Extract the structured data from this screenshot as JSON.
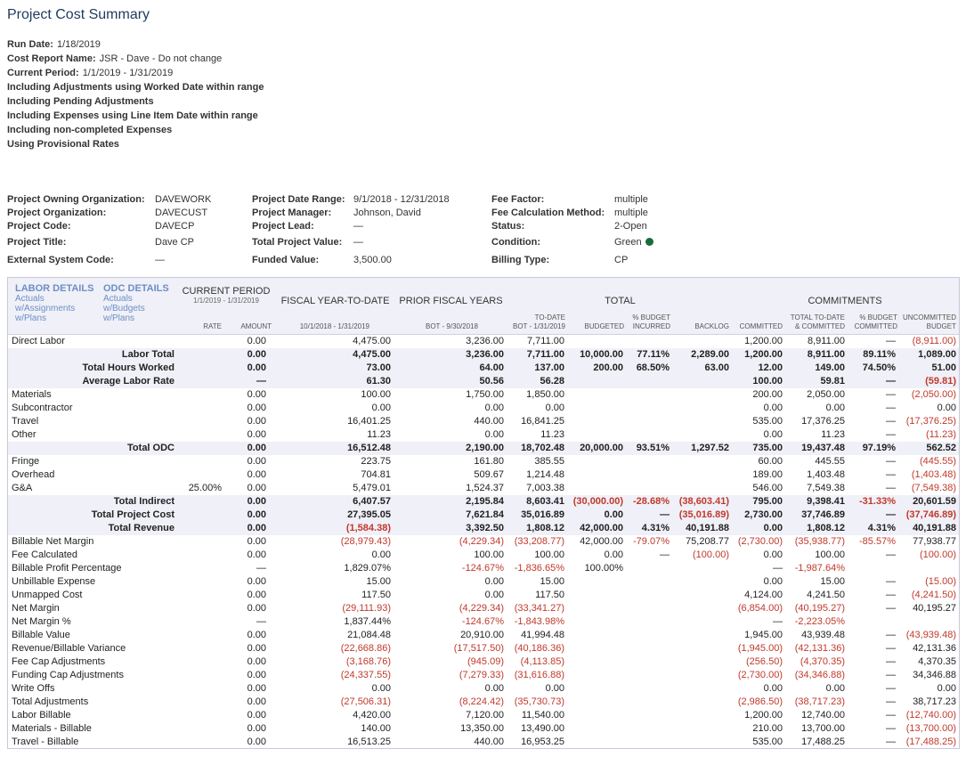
{
  "title": "Project Cost Summary",
  "run_info": [
    {
      "label": "Run Date:",
      "value": "1/18/2019"
    },
    {
      "label": "Cost Report Name:",
      "value": "JSR - Dave - Do not change"
    },
    {
      "label": "Current Period:",
      "value": "1/1/2019 - 1/31/2019"
    },
    {
      "label": "Including Adjustments using Worked Date within range",
      "value": ""
    },
    {
      "label": "Including Pending Adjustments",
      "value": ""
    },
    {
      "label": "Including Expenses using Line Item Date within range",
      "value": ""
    },
    {
      "label": "Including non-completed Expenses",
      "value": ""
    },
    {
      "label": "Using Provisional Rates",
      "value": ""
    }
  ],
  "project": {
    "owning_org_label": "Project Owning Organization:",
    "owning_org": "DAVEWORK",
    "org_label": "Project Organization:",
    "org": "DAVECUST",
    "code_label": "Project Code:",
    "code": "DAVECP",
    "title_label": "Project Title:",
    "title": "Dave CP",
    "ext_label": "External System Code:",
    "ext": "—",
    "date_range_label": "Project Date Range:",
    "date_range": "9/1/2018 - 12/31/2018",
    "manager_label": "Project Manager:",
    "manager": "Johnson, David",
    "lead_label": "Project Lead:",
    "lead": "—",
    "total_value_label": "Total Project Value:",
    "total_value": "—",
    "funded_label": "Funded Value:",
    "funded": "3,500.00",
    "fee_factor_label": "Fee Factor:",
    "fee_factor": "multiple",
    "fee_method_label": "Fee Calculation Method:",
    "fee_method": "multiple",
    "status_label": "Status:",
    "status": "2-Open",
    "condition_label": "Condition:",
    "condition": "Green",
    "billing_label": "Billing Type:",
    "billing": "CP",
    "condition_color": "#1a6b3c"
  },
  "header": {
    "labor_title": "LABOR DETAILS",
    "labor_links": [
      "Actuals",
      "w/Assignments",
      "w/Plans"
    ],
    "odc_title": "ODC DETAILS",
    "odc_links": [
      "Actuals",
      "w/Budgets",
      "w/Plans"
    ],
    "current_period": "CURRENT PERIOD",
    "current_period_range": "1/1/2019 - 1/31/2019",
    "fytd": "FISCAL YEAR-TO-DATE",
    "prior": "PRIOR FISCAL YEARS",
    "total": "TOTAL",
    "commitments": "COMMITMENTS",
    "col_rate": "RATE",
    "col_amount": "AMOUNT",
    "col_fytd_range": "10/1/2018 - 1/31/2019",
    "col_bot": "BOT - 9/30/2018",
    "col_todate_1": "TO-DATE",
    "col_todate_2": "BOT - 1/31/2019",
    "col_budgeted": "BUDGETED",
    "col_pct_budget_1": "% BUDGET",
    "col_pct_budget_2": "INCURRED",
    "col_backlog": "BACKLOG",
    "col_committed": "COMMITTED",
    "col_total_todate_1": "TOTAL TO-DATE",
    "col_total_todate_2": "& COMMITTED",
    "col_pct_committed_1": "% BUDGET",
    "col_pct_committed_2": "COMMITTED",
    "col_uncommitted_1": "UNCOMMITTED",
    "col_uncommitted_2": "BUDGET"
  },
  "rows": [
    {
      "label": "Direct Labor",
      "total": false,
      "cells": [
        "",
        "0.00",
        "4,475.00",
        "3,236.00",
        "7,711.00",
        "",
        "",
        "",
        "1,200.00",
        "8,911.00",
        "—",
        "(8,911.00)"
      ]
    },
    {
      "label": "Labor Total",
      "total": true,
      "cells": [
        "",
        "0.00",
        "4,475.00",
        "3,236.00",
        "7,711.00",
        "10,000.00",
        "77.11%",
        "2,289.00",
        "1,200.00",
        "8,911.00",
        "89.11%",
        "1,089.00"
      ]
    },
    {
      "label": "Total Hours Worked",
      "total": true,
      "cells": [
        "",
        "0.00",
        "73.00",
        "64.00",
        "137.00",
        "200.00",
        "68.50%",
        "63.00",
        "12.00",
        "149.00",
        "74.50%",
        "51.00"
      ]
    },
    {
      "label": "Average Labor Rate",
      "total": true,
      "cells": [
        "",
        "—",
        "61.30",
        "50.56",
        "56.28",
        "",
        "",
        "",
        "100.00",
        "59.81",
        "—",
        "(59.81)"
      ]
    },
    {
      "label": "Materials",
      "total": false,
      "cells": [
        "",
        "0.00",
        "100.00",
        "1,750.00",
        "1,850.00",
        "",
        "",
        "",
        "200.00",
        "2,050.00",
        "—",
        "(2,050.00)"
      ]
    },
    {
      "label": "Subcontractor",
      "total": false,
      "cells": [
        "",
        "0.00",
        "0.00",
        "0.00",
        "0.00",
        "",
        "",
        "",
        "0.00",
        "0.00",
        "—",
        "0.00"
      ]
    },
    {
      "label": "Travel",
      "total": false,
      "cells": [
        "",
        "0.00",
        "16,401.25",
        "440.00",
        "16,841.25",
        "",
        "",
        "",
        "535.00",
        "17,376.25",
        "—",
        "(17,376.25)"
      ]
    },
    {
      "label": "Other",
      "total": false,
      "cells": [
        "",
        "0.00",
        "11.23",
        "0.00",
        "11.23",
        "",
        "",
        "",
        "0.00",
        "11.23",
        "—",
        "(11.23)"
      ]
    },
    {
      "label": "Total ODC",
      "total": true,
      "cells": [
        "",
        "0.00",
        "16,512.48",
        "2,190.00",
        "18,702.48",
        "20,000.00",
        "93.51%",
        "1,297.52",
        "735.00",
        "19,437.48",
        "97.19%",
        "562.52"
      ]
    },
    {
      "label": "Fringe",
      "total": false,
      "cells": [
        "",
        "0.00",
        "223.75",
        "161.80",
        "385.55",
        "",
        "",
        "",
        "60.00",
        "445.55",
        "—",
        "(445.55)"
      ]
    },
    {
      "label": "Overhead",
      "total": false,
      "cells": [
        "",
        "0.00",
        "704.81",
        "509.67",
        "1,214.48",
        "",
        "",
        "",
        "189.00",
        "1,403.48",
        "—",
        "(1,403.48)"
      ]
    },
    {
      "label": "G&A",
      "total": false,
      "cells": [
        "25.00%",
        "0.00",
        "5,479.01",
        "1,524.37",
        "7,003.38",
        "",
        "",
        "",
        "546.00",
        "7,549.38",
        "—",
        "(7,549.38)"
      ]
    },
    {
      "label": "Total Indirect",
      "total": true,
      "cells": [
        "",
        "0.00",
        "6,407.57",
        "2,195.84",
        "8,603.41",
        "(30,000.00)",
        "-28.68%",
        "(38,603.41)",
        "795.00",
        "9,398.41",
        "-31.33%",
        "20,601.59"
      ]
    },
    {
      "label": "Total Project Cost",
      "total": true,
      "cells": [
        "",
        "0.00",
        "27,395.05",
        "7,621.84",
        "35,016.89",
        "0.00",
        "—",
        "(35,016.89)",
        "2,730.00",
        "37,746.89",
        "—",
        "(37,746.89)"
      ]
    },
    {
      "label": "Total Revenue",
      "total": true,
      "cells": [
        "",
        "0.00",
        "(1,584.38)",
        "3,392.50",
        "1,808.12",
        "42,000.00",
        "4.31%",
        "40,191.88",
        "0.00",
        "1,808.12",
        "4.31%",
        "40,191.88"
      ]
    },
    {
      "label": "Billable Net Margin",
      "total": false,
      "cells": [
        "",
        "0.00",
        "(28,979.43)",
        "(4,229.34)",
        "(33,208.77)",
        "42,000.00",
        "-79.07%",
        "75,208.77",
        "(2,730.00)",
        "(35,938.77)",
        "-85.57%",
        "77,938.77"
      ]
    },
    {
      "label": "Fee Calculated",
      "total": false,
      "cells": [
        "",
        "0.00",
        "0.00",
        "100.00",
        "100.00",
        "0.00",
        "—",
        "(100.00)",
        "0.00",
        "100.00",
        "—",
        "(100.00)"
      ]
    },
    {
      "label": "Billable Profit Percentage",
      "total": false,
      "cells": [
        "",
        "—",
        "1,829.07%",
        "-124.67%",
        "-1,836.65%",
        "100.00%",
        "",
        "",
        "—",
        "-1,987.64%",
        "",
        ""
      ]
    },
    {
      "label": "Unbillable Expense",
      "total": false,
      "cells": [
        "",
        "0.00",
        "15.00",
        "0.00",
        "15.00",
        "",
        "",
        "",
        "0.00",
        "15.00",
        "—",
        "(15.00)"
      ]
    },
    {
      "label": "Unmapped Cost",
      "total": false,
      "cells": [
        "",
        "0.00",
        "117.50",
        "0.00",
        "117.50",
        "",
        "",
        "",
        "4,124.00",
        "4,241.50",
        "—",
        "(4,241.50)"
      ]
    },
    {
      "label": "Net Margin",
      "total": false,
      "cells": [
        "",
        "0.00",
        "(29,111.93)",
        "(4,229.34)",
        "(33,341.27)",
        "",
        "",
        "",
        "(6,854.00)",
        "(40,195.27)",
        "—",
        "40,195.27"
      ]
    },
    {
      "label": "Net Margin %",
      "total": false,
      "cells": [
        "",
        "—",
        "1,837.44%",
        "-124.67%",
        "-1,843.98%",
        "",
        "",
        "",
        "—",
        "-2,223.05%",
        "",
        ""
      ]
    },
    {
      "label": "Billable Value",
      "total": false,
      "cells": [
        "",
        "0.00",
        "21,084.48",
        "20,910.00",
        "41,994.48",
        "",
        "",
        "",
        "1,945.00",
        "43,939.48",
        "—",
        "(43,939.48)"
      ]
    },
    {
      "label": "Revenue/Billable Variance",
      "total": false,
      "cells": [
        "",
        "0.00",
        "(22,668.86)",
        "(17,517.50)",
        "(40,186.36)",
        "",
        "",
        "",
        "(1,945.00)",
        "(42,131.36)",
        "—",
        "42,131.36"
      ]
    },
    {
      "label": "Fee Cap Adjustments",
      "total": false,
      "cells": [
        "",
        "0.00",
        "(3,168.76)",
        "(945.09)",
        "(4,113.85)",
        "",
        "",
        "",
        "(256.50)",
        "(4,370.35)",
        "—",
        "4,370.35"
      ]
    },
    {
      "label": "Funding Cap Adjustments",
      "total": false,
      "cells": [
        "",
        "0.00",
        "(24,337.55)",
        "(7,279.33)",
        "(31,616.88)",
        "",
        "",
        "",
        "(2,730.00)",
        "(34,346.88)",
        "—",
        "34,346.88"
      ]
    },
    {
      "label": "Write Offs",
      "total": false,
      "cells": [
        "",
        "0.00",
        "0.00",
        "0.00",
        "0.00",
        "",
        "",
        "",
        "0.00",
        "0.00",
        "—",
        "0.00"
      ]
    },
    {
      "label": "Total Adjustments",
      "total": false,
      "cells": [
        "",
        "0.00",
        "(27,506.31)",
        "(8,224.42)",
        "(35,730.73)",
        "",
        "",
        "",
        "(2,986.50)",
        "(38,717.23)",
        "—",
        "38,717.23"
      ]
    },
    {
      "label": "Labor Billable",
      "total": false,
      "cells": [
        "",
        "0.00",
        "4,420.00",
        "7,120.00",
        "11,540.00",
        "",
        "",
        "",
        "1,200.00",
        "12,740.00",
        "—",
        "(12,740.00)"
      ]
    },
    {
      "label": "Materials - Billable",
      "total": false,
      "cells": [
        "",
        "0.00",
        "140.00",
        "13,350.00",
        "13,490.00",
        "",
        "",
        "",
        "210.00",
        "13,700.00",
        "—",
        "(13,700.00)"
      ]
    },
    {
      "label": "Travel - Billable",
      "total": false,
      "cells": [
        "",
        "0.00",
        "16,513.25",
        "440.00",
        "16,953.25",
        "",
        "",
        "",
        "535.00",
        "17,488.25",
        "—",
        "(17,488.25)"
      ]
    }
  ]
}
